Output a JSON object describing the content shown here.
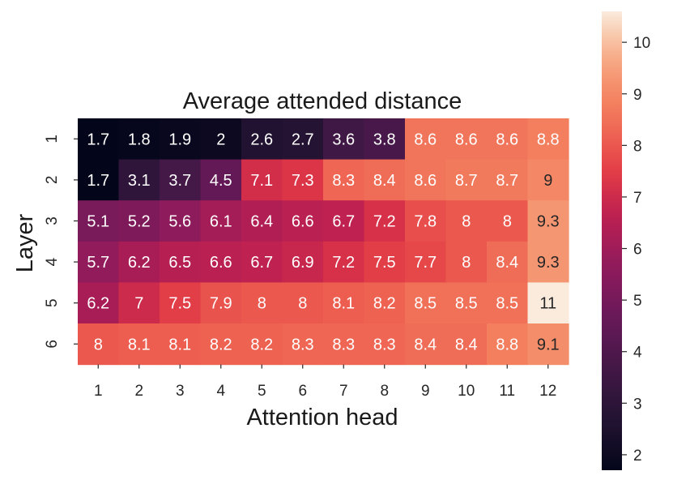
{
  "chart_data": {
    "type": "heatmap",
    "title": "Average attended distance",
    "xlabel": "Attention head",
    "ylabel": "Layer",
    "x_categories": [
      "1",
      "2",
      "3",
      "4",
      "5",
      "6",
      "7",
      "8",
      "9",
      "10",
      "11",
      "12"
    ],
    "y_categories": [
      "1",
      "2",
      "3",
      "4",
      "5",
      "6"
    ],
    "values": [
      [
        1.7,
        1.8,
        1.9,
        2.0,
        2.6,
        2.7,
        3.6,
        3.8,
        8.6,
        8.6,
        8.6,
        8.8
      ],
      [
        1.7,
        3.1,
        3.7,
        4.5,
        7.1,
        7.3,
        8.3,
        8.4,
        8.6,
        8.7,
        8.7,
        9.0
      ],
      [
        5.1,
        5.2,
        5.6,
        6.1,
        6.4,
        6.6,
        6.7,
        7.2,
        7.8,
        8.0,
        8.0,
        9.3
      ],
      [
        5.7,
        6.2,
        6.5,
        6.6,
        6.7,
        6.9,
        7.2,
        7.5,
        7.7,
        8.0,
        8.4,
        9.3
      ],
      [
        6.2,
        7.0,
        7.5,
        7.9,
        8.0,
        8.0,
        8.1,
        8.2,
        8.5,
        8.5,
        8.5,
        10.6
      ],
      [
        8.0,
        8.1,
        8.1,
        8.2,
        8.2,
        8.3,
        8.3,
        8.3,
        8.4,
        8.4,
        8.8,
        9.1
      ]
    ],
    "annotations": [
      [
        "1.7",
        "1.8",
        "1.9",
        "2",
        "2.6",
        "2.7",
        "3.6",
        "3.8",
        "8.6",
        "8.6",
        "8.6",
        "8.8"
      ],
      [
        "1.7",
        "3.1",
        "3.7",
        "4.5",
        "7.1",
        "7.3",
        "8.3",
        "8.4",
        "8.6",
        "8.7",
        "8.7",
        "9"
      ],
      [
        "5.1",
        "5.2",
        "5.6",
        "6.1",
        "6.4",
        "6.6",
        "6.7",
        "7.2",
        "7.8",
        "8",
        "8",
        "9.3"
      ],
      [
        "5.7",
        "6.2",
        "6.5",
        "6.6",
        "6.7",
        "6.9",
        "7.2",
        "7.5",
        "7.7",
        "8",
        "8.4",
        "9.3"
      ],
      [
        "6.2",
        "7",
        "7.5",
        "7.9",
        "8",
        "8",
        "8.1",
        "8.2",
        "8.5",
        "8.5",
        "8.5",
        "11"
      ],
      [
        "8",
        "8.1",
        "8.1",
        "8.2",
        "8.2",
        "8.3",
        "8.3",
        "8.3",
        "8.4",
        "8.4",
        "8.8",
        "9.1"
      ]
    ],
    "colormap": "rocket",
    "colorbar": {
      "range": [
        1.7,
        10.6
      ],
      "ticks": [
        2,
        3,
        4,
        5,
        6,
        7,
        8,
        9,
        10
      ],
      "tick_labels": [
        "2",
        "3",
        "4",
        "5",
        "6",
        "7",
        "8",
        "9",
        "10"
      ]
    },
    "grid": false
  }
}
